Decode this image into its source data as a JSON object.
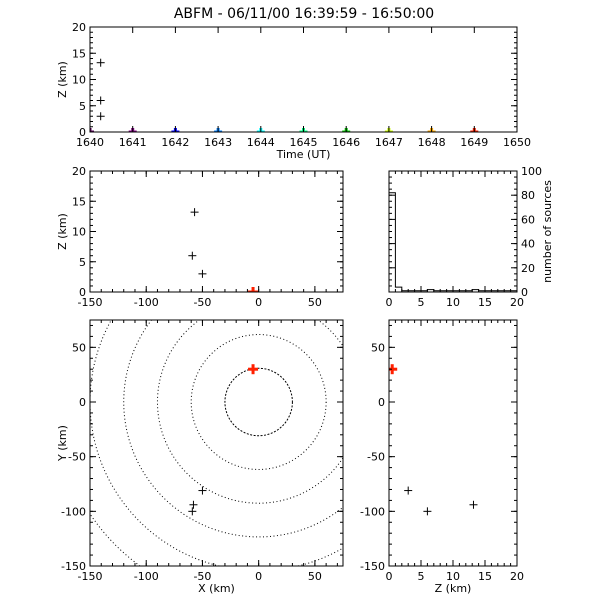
{
  "title": "ABFM - 06/11/00 16:39:59 - 16:50:00",
  "chart_data": [
    {
      "id": "time-height",
      "type": "scatter",
      "xlabel": "Time (UT)",
      "ylabel": "Z (km)",
      "xlim": [
        1640,
        1650
      ],
      "ylim": [
        0,
        20
      ],
      "xticks": [
        "1640",
        "1641",
        "1642",
        "1643",
        "1644",
        "1645",
        "1646",
        "1647",
        "1648",
        "1649",
        "1650"
      ],
      "yticks": [
        "0",
        "5",
        "10",
        "15",
        "20"
      ],
      "points": [
        {
          "x": 1640.25,
          "y": 13.2,
          "color": "#000000"
        },
        {
          "x": 1640.25,
          "y": 6.0,
          "color": "#000000"
        },
        {
          "x": 1640.25,
          "y": 3.0,
          "color": "#000000"
        },
        {
          "x": 1640.0,
          "y": 0.0,
          "color": "#5a005a"
        },
        {
          "x": 1641.0,
          "y": 0.0,
          "color": "#800080"
        },
        {
          "x": 1642.0,
          "y": 0.0,
          "color": "#0000ff"
        },
        {
          "x": 1643.0,
          "y": 0.0,
          "color": "#0080ff"
        },
        {
          "x": 1644.0,
          "y": 0.0,
          "color": "#00ffff"
        },
        {
          "x": 1645.0,
          "y": 0.0,
          "color": "#00ff80"
        },
        {
          "x": 1646.0,
          "y": 0.0,
          "color": "#00cc00"
        },
        {
          "x": 1647.0,
          "y": 0.0,
          "color": "#ccff00"
        },
        {
          "x": 1648.0,
          "y": 0.0,
          "color": "#ffaa00"
        },
        {
          "x": 1649.0,
          "y": 0.0,
          "color": "#ff2000"
        }
      ]
    },
    {
      "id": "x-height",
      "type": "scatter",
      "xlabel": "",
      "ylabel": "Z (km)",
      "xlim": [
        -150,
        75
      ],
      "ylim": [
        0,
        20
      ],
      "xticks": [
        "-150",
        "-100",
        "-50",
        "0",
        "50"
      ],
      "yticks": [
        "0",
        "5",
        "10",
        "15",
        "20"
      ],
      "points": [
        {
          "x": -57,
          "y": 13.2,
          "color": "#000000"
        },
        {
          "x": -59,
          "y": 6.0,
          "color": "#000000"
        },
        {
          "x": -50,
          "y": 3.0,
          "color": "#000000"
        },
        {
          "x": -5,
          "y": 0.0,
          "color": "#ff2000",
          "thick": true
        }
      ]
    },
    {
      "id": "histogram",
      "type": "bar",
      "xlabel": "",
      "ylabel": "number of sources",
      "xlim": [
        0,
        20
      ],
      "ylim": [
        0,
        100
      ],
      "xticks": [
        "0",
        "5",
        "10",
        "15",
        "20"
      ],
      "yticks": [
        "0",
        "20",
        "40",
        "60",
        "80",
        "100"
      ],
      "bin_width": 1,
      "bins": [
        0,
        1,
        2,
        3,
        4,
        5,
        6,
        7,
        8,
        9,
        10,
        11,
        12,
        13,
        14,
        15,
        16,
        17,
        18,
        19
      ],
      "values": [
        82,
        4,
        1,
        1,
        1,
        1,
        2,
        1,
        1,
        1,
        1,
        1,
        1,
        2,
        1,
        1,
        1,
        1,
        1,
        1
      ]
    },
    {
      "id": "plan-view",
      "type": "scatter",
      "xlabel": "X (km)",
      "ylabel": "Y (km)",
      "xlim": [
        -150,
        75
      ],
      "ylim": [
        -150,
        75
      ],
      "xticks": [
        "-150",
        "-100",
        "-50",
        "0",
        "50"
      ],
      "yticks": [
        "-150",
        "-100",
        "-50",
        "0",
        "50"
      ],
      "range_rings_km": [
        30,
        60,
        90,
        120,
        150,
        180
      ],
      "ring_center": [
        0,
        0
      ],
      "points": [
        {
          "x": -5,
          "y": 30,
          "color": "#ff2000",
          "thick": true
        },
        {
          "x": -50,
          "y": -81,
          "color": "#000000"
        },
        {
          "x": -58,
          "y": -94,
          "color": "#000000"
        },
        {
          "x": -59,
          "y": -100,
          "color": "#000000"
        }
      ]
    },
    {
      "id": "height-y",
      "type": "scatter",
      "xlabel": "Z (km)",
      "ylabel": "",
      "xlim": [
        0,
        20
      ],
      "ylim": [
        -150,
        75
      ],
      "xticks": [
        "0",
        "5",
        "10",
        "15",
        "20"
      ],
      "yticks": [
        "-150",
        "-100",
        "-50",
        "0",
        "50"
      ],
      "points": [
        {
          "x": 0.5,
          "y": 30,
          "color": "#ff2000",
          "thick": true
        },
        {
          "x": 3.0,
          "y": -81,
          "color": "#000000"
        },
        {
          "x": 6.0,
          "y": -100,
          "color": "#000000"
        },
        {
          "x": 13.2,
          "y": -94,
          "color": "#000000"
        }
      ]
    }
  ]
}
